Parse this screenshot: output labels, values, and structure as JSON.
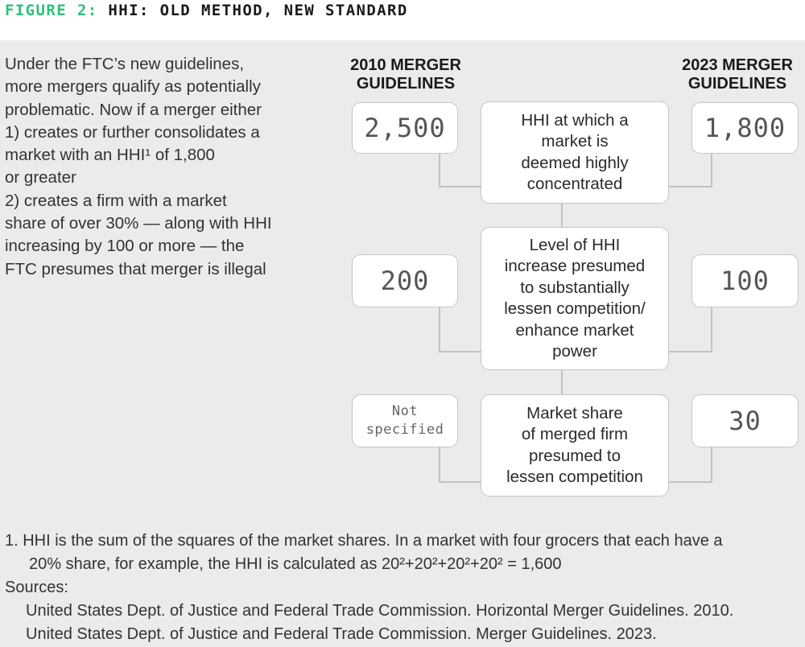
{
  "header": {
    "figure_label": "FIGURE 2:",
    "title": "HHI: OLD METHOD, NEW STANDARD"
  },
  "intro_lines": [
    "Under the FTC’s new guidelines,",
    "more mergers qualify as potentially",
    "problematic. Now if a merger either",
    "1) creates or further consolidates a",
    "market with an HHI¹ of 1,800",
    "or greater",
    "2) creates a firm with a market",
    "share of over 30% — along with HHI",
    "increasing by 100 or more — the",
    "FTC presumes that merger is illegal"
  ],
  "columns": {
    "left": [
      "2010 MERGER",
      "GUIDELINES"
    ],
    "right": [
      "2023 MERGER",
      "GUIDELINES"
    ]
  },
  "rows": [
    {
      "old_value": "2,500",
      "new_value": "1,800",
      "criterion_lines": [
        "HHI at which a",
        "market is",
        "deemed highly",
        "concentrated"
      ]
    },
    {
      "old_value": "200",
      "new_value": "100",
      "criterion_lines": [
        "Level of HHI",
        "increase presumed",
        "to substantially",
        "lessen competition/",
        "enhance market",
        "power"
      ]
    },
    {
      "old_value_lines": [
        "Not",
        "specified"
      ],
      "new_value": "30",
      "criterion_lines": [
        "Market share",
        "of merged firm",
        "presumed to",
        "lessen competition"
      ]
    }
  ],
  "footnote": {
    "note_lines": [
      "1.  HHI is the sum of the squares of the market shares. In a market with four grocers that each have a",
      "20% share, for example, the HHI is calculated as 20²+20²+20²+20² = 1,600"
    ],
    "sources_label": "Sources:",
    "sources": [
      "United States Dept. of Justice and Federal Trade Commission. Horizontal Merger Guidelines. 2010.",
      "United States Dept. of Justice and Federal Trade Commission. Merger Guidelines. 2023."
    ]
  },
  "colors": {
    "accent": "#2fc07a",
    "panel": "#ebebeb",
    "box_border": "#c6c6c6",
    "connector": "#b5b5b5"
  }
}
